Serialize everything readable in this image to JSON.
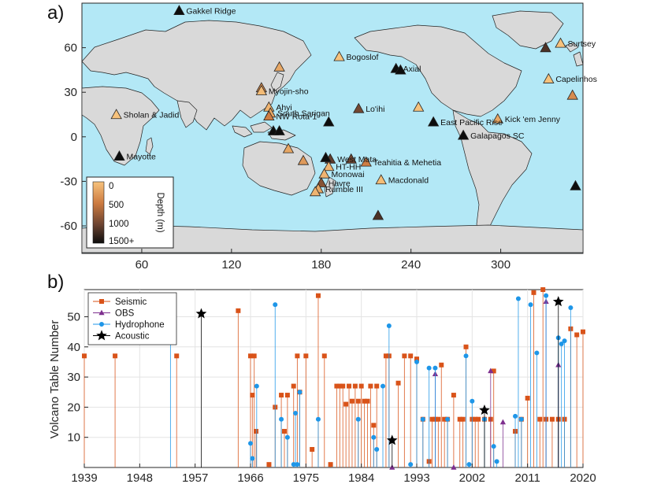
{
  "panels": {
    "a": "a)",
    "b": "b)"
  },
  "chart_data": [
    {
      "type": "scatter",
      "panel": "a",
      "description_type": "map",
      "xlim": [
        20,
        355
      ],
      "ylim": [
        -78,
        90
      ],
      "xticks": [
        60,
        120,
        180,
        240,
        300
      ],
      "yticks": [
        60,
        30,
        0,
        -30,
        -60
      ],
      "colorbar": {
        "label": "Depth (m)",
        "ticks": [
          "0",
          "500",
          "1000",
          "1500+"
        ],
        "range": [
          0,
          1500
        ],
        "colors": [
          "#f5b36b",
          "#d98a4a",
          "#8a5a3a",
          "#1a1a1a"
        ]
      },
      "colors": {
        "ocean": "#b3e8f6",
        "land": "#d9d9d9"
      },
      "volcanoes": [
        {
          "name": "Gakkel Ridge",
          "lon": 85,
          "lat": 85,
          "depth": 3800
        },
        {
          "name": "Surtsey",
          "lon": 340,
          "lat": 63,
          "depth": 0
        },
        {
          "name": "",
          "lon": 330,
          "lat": 60,
          "depth": 1200
        },
        {
          "name": "Bogoslof",
          "lon": 192,
          "lat": 54,
          "depth": 0
        },
        {
          "name": "",
          "lon": 152,
          "lat": 47,
          "depth": 200
        },
        {
          "name": "Axial",
          "lon": 230,
          "lat": 46,
          "depth": 1500
        },
        {
          "name": "",
          "lon": 233,
          "lat": 45,
          "depth": 2200
        },
        {
          "name": "Capelinhos",
          "lon": 332,
          "lat": 39,
          "depth": 0
        },
        {
          "name": "",
          "lon": 140,
          "lat": 33,
          "depth": 400
        },
        {
          "name": "Myojin-sho",
          "lon": 140,
          "lat": 31,
          "depth": 50
        },
        {
          "name": "Ahyi",
          "lon": 145,
          "lat": 20,
          "depth": 100
        },
        {
          "name": "South Sarigan",
          "lon": 146,
          "lat": 16,
          "depth": 200
        },
        {
          "name": "NW Rota-1",
          "lon": 145,
          "lat": 14,
          "depth": 500
        },
        {
          "name": "Lo'ihi",
          "lon": 205,
          "lat": 19,
          "depth": 1000
        },
        {
          "name": "",
          "lon": 245,
          "lat": 20,
          "depth": 0
        },
        {
          "name": "",
          "lon": 348,
          "lat": 28,
          "depth": 400
        },
        {
          "name": "Sholan & Jadid",
          "lon": 43,
          "lat": 15,
          "depth": 0
        },
        {
          "name": "Kick 'em Jenny",
          "lon": 298,
          "lat": 12,
          "depth": 200
        },
        {
          "name": "East Pacific Rise",
          "lon": 255,
          "lat": 10,
          "depth": 2500
        },
        {
          "name": "Galapagos SC",
          "lon": 275,
          "lat": 1,
          "depth": 2500
        },
        {
          "name": "",
          "lon": 148,
          "lat": 4,
          "depth": 2000
        },
        {
          "name": "",
          "lon": 152,
          "lat": 4,
          "depth": 2200
        },
        {
          "name": "",
          "lon": 185,
          "lat": 10,
          "depth": 1500
        },
        {
          "name": "",
          "lon": 200,
          "lat": -15,
          "depth": 1000
        },
        {
          "name": "Mayotte",
          "lon": 45,
          "lat": -13,
          "depth": 2600
        },
        {
          "name": "West Mata",
          "lon": 186,
          "lat": -15,
          "depth": 1100
        },
        {
          "name": "",
          "lon": 158,
          "lat": -8,
          "depth": 200
        },
        {
          "name": "",
          "lon": 168,
          "lat": -16,
          "depth": 300
        },
        {
          "name": "",
          "lon": 183,
          "lat": -14,
          "depth": 2000
        },
        {
          "name": "HT-HH",
          "lon": 185,
          "lat": -20,
          "depth": 100
        },
        {
          "name": "Teahitia & Mehetia",
          "lon": 210,
          "lat": -17,
          "depth": 500
        },
        {
          "name": "Monowai",
          "lon": 182,
          "lat": -25,
          "depth": 100
        },
        {
          "name": "Macdonald",
          "lon": 220,
          "lat": -29,
          "depth": 40
        },
        {
          "name": "Havre",
          "lon": 180,
          "lat": -31,
          "depth": 900
        },
        {
          "name": "Rumble III",
          "lon": 178,
          "lat": -35,
          "depth": 200
        },
        {
          "name": "",
          "lon": 176,
          "lat": -37,
          "depth": 100
        },
        {
          "name": "",
          "lon": 218,
          "lat": -53,
          "depth": 1200
        },
        {
          "name": "",
          "lon": 350,
          "lat": -33,
          "depth": 1500
        }
      ]
    },
    {
      "type": "scatter",
      "panel": "b",
      "style": "stem",
      "ylabel": "Volcano Table Number",
      "xlabel": "",
      "xlim": [
        1939,
        2020
      ],
      "ylim": [
        0,
        59
      ],
      "xticks": [
        1939,
        1948,
        1957,
        1966,
        1975,
        1984,
        1993,
        2002,
        2011,
        2020
      ],
      "yticks": [
        10,
        20,
        30,
        40,
        50
      ],
      "grid": true,
      "legend_position": "top-left",
      "series": [
        {
          "name": "Seismic",
          "marker": "square",
          "color": "#d95319",
          "points": [
            [
              1939,
              37
            ],
            [
              1944,
              37
            ],
            [
              1954,
              37
            ],
            [
              1964,
              52
            ],
            [
              1966,
              37
            ],
            [
              1966.3,
              24
            ],
            [
              1966.6,
              37
            ],
            [
              1966.9,
              12
            ],
            [
              1969,
              1
            ],
            [
              1970,
              20
            ],
            [
              1971,
              24
            ],
            [
              1971.5,
              12
            ],
            [
              1972,
              24
            ],
            [
              1973,
              27
            ],
            [
              1973.6,
              37
            ],
            [
              1974,
              25
            ],
            [
              1975,
              37
            ],
            [
              1976,
              6
            ],
            [
              1977,
              57
            ],
            [
              1978,
              37
            ],
            [
              1979,
              1
            ],
            [
              1980,
              27
            ],
            [
              1980.5,
              27
            ],
            [
              1981,
              27
            ],
            [
              1981.5,
              21
            ],
            [
              1982,
              27
            ],
            [
              1982.5,
              22
            ],
            [
              1983,
              27
            ],
            [
              1983.5,
              22
            ],
            [
              1984,
              27
            ],
            [
              1984.5,
              22
            ],
            [
              1985,
              22
            ],
            [
              1985.5,
              27
            ],
            [
              1986,
              14
            ],
            [
              1986.5,
              27
            ],
            [
              1988,
              37
            ],
            [
              1988.5,
              37
            ],
            [
              1990,
              28
            ],
            [
              1991,
              37
            ],
            [
              1992,
              37
            ],
            [
              1993,
              36
            ],
            [
              1994,
              16
            ],
            [
              1995,
              2
            ],
            [
              1995.5,
              16
            ],
            [
              1996,
              16
            ],
            [
              1996.5,
              16
            ],
            [
              1997,
              34
            ],
            [
              1997.5,
              16
            ],
            [
              1998,
              16
            ],
            [
              1999,
              24
            ],
            [
              2000,
              16
            ],
            [
              2000.5,
              16
            ],
            [
              2001,
              40
            ],
            [
              2002,
              16
            ],
            [
              2002.5,
              16
            ],
            [
              2003,
              16
            ],
            [
              2004,
              16
            ],
            [
              2005,
              16
            ],
            [
              2005.5,
              32
            ],
            [
              2009,
              12
            ],
            [
              2010,
              16
            ],
            [
              2011,
              23
            ],
            [
              2012,
              58
            ],
            [
              2013,
              16
            ],
            [
              2013.5,
              59
            ],
            [
              2014,
              16
            ],
            [
              2015,
              16
            ],
            [
              2016,
              16
            ],
            [
              2017,
              16
            ],
            [
              2018,
              46
            ],
            [
              2019,
              44
            ],
            [
              2020,
              45
            ]
          ]
        },
        {
          "name": "OBS",
          "marker": "triangle",
          "color": "#7e2f8e",
          "points": [
            [
              1989,
              0
            ],
            [
              1996,
              31
            ],
            [
              1999,
              0
            ],
            [
              2005,
              32
            ],
            [
              2007,
              15
            ],
            [
              2014,
              55
            ],
            [
              2016,
              34
            ]
          ]
        },
        {
          "name": "Hydrophone",
          "marker": "circle",
          "color": "#1e96e8",
          "points": [
            [
              1953,
              54
            ],
            [
              1966,
              8
            ],
            [
              1966.3,
              3
            ],
            [
              1967,
              27
            ],
            [
              1970,
              54
            ],
            [
              1971,
              16
            ],
            [
              1972,
              10
            ],
            [
              1973,
              1
            ],
            [
              1973.3,
              18
            ],
            [
              1973.6,
              1
            ],
            [
              1974,
              25
            ],
            [
              1977,
              16
            ],
            [
              1983.5,
              16
            ],
            [
              1986,
              10
            ],
            [
              1986.5,
              6
            ],
            [
              1987.5,
              27
            ],
            [
              1988.5,
              47
            ],
            [
              1992,
              1
            ],
            [
              1993,
              35
            ],
            [
              1994,
              16
            ],
            [
              1995,
              33
            ],
            [
              1996,
              33
            ],
            [
              1998,
              16
            ],
            [
              2001,
              37
            ],
            [
              2001.5,
              1
            ],
            [
              2002,
              22
            ],
            [
              2004,
              16
            ],
            [
              2005.5,
              7
            ],
            [
              2006,
              2
            ],
            [
              2009,
              17
            ],
            [
              2009.5,
              56
            ],
            [
              2010,
              16
            ],
            [
              2011.5,
              54
            ],
            [
              2012.5,
              38
            ],
            [
              2014,
              57
            ],
            [
              2016,
              43
            ],
            [
              2016.5,
              41
            ],
            [
              2017,
              42
            ],
            [
              2018,
              53
            ]
          ]
        },
        {
          "name": "Acoustic",
          "marker": "star",
          "color": "#000000",
          "points": [
            [
              1958,
              51
            ],
            [
              1989,
              9
            ],
            [
              2004,
              19
            ],
            [
              2016,
              55
            ]
          ]
        }
      ]
    }
  ]
}
